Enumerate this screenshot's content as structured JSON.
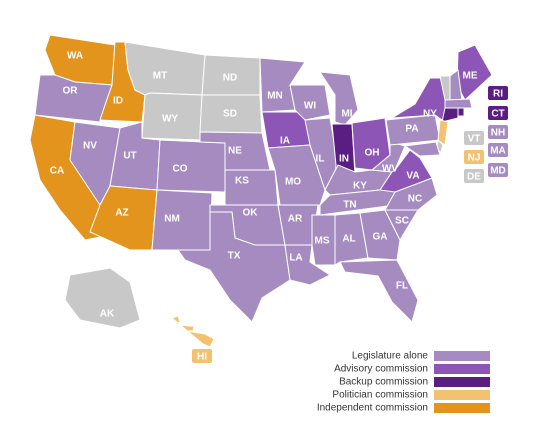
{
  "map": {
    "states": [
      {
        "abbr": "WA",
        "color": "#e2941c"
      },
      {
        "abbr": "OR",
        "color": "#a58bc0"
      },
      {
        "abbr": "CA",
        "color": "#e2941c"
      },
      {
        "abbr": "NV",
        "color": "#a58bc0"
      },
      {
        "abbr": "ID",
        "color": "#e2941c"
      },
      {
        "abbr": "MT",
        "color": "#c8c8c8"
      },
      {
        "abbr": "WY",
        "color": "#c8c8c8"
      },
      {
        "abbr": "UT",
        "color": "#a58bc0"
      },
      {
        "abbr": "AZ",
        "color": "#e2941c"
      },
      {
        "abbr": "CO",
        "color": "#a58bc0"
      },
      {
        "abbr": "NM",
        "color": "#a58bc0"
      },
      {
        "abbr": "ND",
        "color": "#c8c8c8"
      },
      {
        "abbr": "SD",
        "color": "#c8c8c8"
      },
      {
        "abbr": "NE",
        "color": "#a58bc0"
      },
      {
        "abbr": "KS",
        "color": "#a58bc0"
      },
      {
        "abbr": "OK",
        "color": "#a58bc0"
      },
      {
        "abbr": "TX",
        "color": "#a58bc0"
      },
      {
        "abbr": "MN",
        "color": "#a58bc0"
      },
      {
        "abbr": "IA",
        "color": "#8d55b5"
      },
      {
        "abbr": "MO",
        "color": "#a58bc0"
      },
      {
        "abbr": "AR",
        "color": "#a58bc0"
      },
      {
        "abbr": "LA",
        "color": "#a58bc0"
      },
      {
        "abbr": "WI",
        "color": "#a58bc0"
      },
      {
        "abbr": "IL",
        "color": "#a58bc0"
      },
      {
        "abbr": "MI",
        "color": "#a58bc0"
      },
      {
        "abbr": "IN",
        "color": "#5a1d82"
      },
      {
        "abbr": "OH",
        "color": "#8d55b5"
      },
      {
        "abbr": "KY",
        "color": "#a58bc0"
      },
      {
        "abbr": "TN",
        "color": "#a58bc0"
      },
      {
        "abbr": "MS",
        "color": "#a58bc0"
      },
      {
        "abbr": "AL",
        "color": "#a58bc0"
      },
      {
        "abbr": "GA",
        "color": "#a58bc0"
      },
      {
        "abbr": "FL",
        "color": "#a58bc0"
      },
      {
        "abbr": "SC",
        "color": "#a58bc0"
      },
      {
        "abbr": "NC",
        "color": "#a58bc0"
      },
      {
        "abbr": "VA",
        "color": "#8d55b5"
      },
      {
        "abbr": "WV",
        "color": "#a58bc0"
      },
      {
        "abbr": "PA",
        "color": "#a58bc0"
      },
      {
        "abbr": "NY",
        "color": "#8d55b5"
      },
      {
        "abbr": "ME",
        "color": "#8d55b5"
      },
      {
        "abbr": "AK",
        "color": "#c8c8c8"
      },
      {
        "abbr": "RI",
        "color": "#5a1d82"
      },
      {
        "abbr": "CT",
        "color": "#5a1d82"
      },
      {
        "abbr": "VT",
        "color": "#c8c8c8"
      },
      {
        "abbr": "NH",
        "color": "#a58bc0"
      },
      {
        "abbr": "NJ",
        "color": "#f2c270"
      },
      {
        "abbr": "MA",
        "color": "#a58bc0"
      },
      {
        "abbr": "DE",
        "color": "#c8c8c8"
      },
      {
        "abbr": "MD",
        "color": "#a58bc0"
      },
      {
        "abbr": "HI",
        "color": "#f2c270"
      }
    ],
    "legend": [
      {
        "label": "Legislature alone",
        "color": "#a58bc0"
      },
      {
        "label": "Advisory commission",
        "color": "#8d55b5"
      },
      {
        "label": "Backup commission",
        "color": "#5a1d82"
      },
      {
        "label": "Politician commission",
        "color": "#f2c270"
      },
      {
        "label": "Independent commission",
        "color": "#e2941c"
      }
    ]
  }
}
